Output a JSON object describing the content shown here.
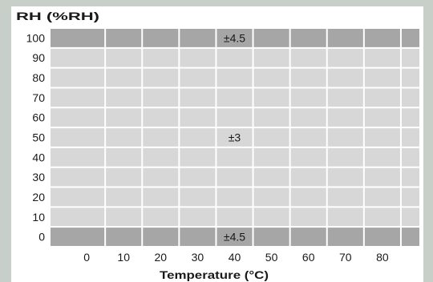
{
  "chart_data": {
    "type": "heatmap",
    "title": "",
    "ylabel": "RH (%RH)",
    "xlabel": "Temperature (°C)",
    "xlim": [
      -10,
      90
    ],
    "ylim": [
      -5,
      105
    ],
    "x_ticks": [
      0,
      10,
      20,
      30,
      40,
      50,
      60,
      70,
      80
    ],
    "y_ticks": [
      0,
      10,
      20,
      30,
      40,
      50,
      60,
      70,
      80,
      90,
      100
    ],
    "grid": true,
    "zones": [
      {
        "label": "±4.5",
        "rh_range": [
          95,
          105
        ],
        "color": "#a6a6a6"
      },
      {
        "label": "±3",
        "rh_range": [
          5,
          95
        ],
        "color": "#d7d7d7"
      },
      {
        "label": "±4.5",
        "rh_range": [
          -5,
          5
        ],
        "color": "#a6a6a6"
      }
    ]
  }
}
